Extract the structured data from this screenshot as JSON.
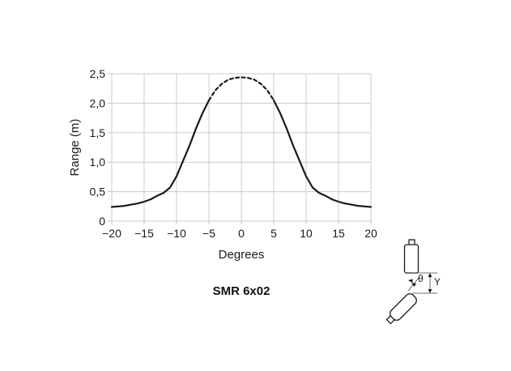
{
  "page": {
    "background": "#ffffff"
  },
  "chart_data": {
    "type": "line",
    "title": "SMR 6x02",
    "xlabel": "Degrees",
    "ylabel": "Range (m)",
    "xlim": [
      -20,
      20
    ],
    "ylim": [
      0,
      2.5
    ],
    "grid": true,
    "legend": false,
    "grid_color": "#cccccc",
    "line_color": "#1a1a1a",
    "x_ticks": [
      {
        "v": -20,
        "label": "−20"
      },
      {
        "v": -15,
        "label": "−15"
      },
      {
        "v": -10,
        "label": "−10"
      },
      {
        "v": -5,
        "label": "−5"
      },
      {
        "v": 0,
        "label": "0"
      },
      {
        "v": 5,
        "label": "5"
      },
      {
        "v": 10,
        "label": "10"
      },
      {
        "v": 15,
        "label": "15"
      },
      {
        "v": 20,
        "label": "20"
      }
    ],
    "y_ticks": [
      {
        "v": 0,
        "label": "0"
      },
      {
        "v": 0.5,
        "label": "0,5"
      },
      {
        "v": 1,
        "label": "1,0"
      },
      {
        "v": 1.5,
        "label": "1,5"
      },
      {
        "v": 2,
        "label": "2,0"
      },
      {
        "v": 2.5,
        "label": "2,5"
      }
    ],
    "series": [
      {
        "name": "detection-range-envelope",
        "color": "#1a1a1a",
        "dashed_between_degrees": [
          -5,
          5
        ],
        "points": [
          [
            -20,
            0.24
          ],
          [
            -19,
            0.25
          ],
          [
            -18,
            0.26
          ],
          [
            -17,
            0.28
          ],
          [
            -16,
            0.3
          ],
          [
            -15,
            0.33
          ],
          [
            -14,
            0.37
          ],
          [
            -13,
            0.43
          ],
          [
            -12,
            0.48
          ],
          [
            -11,
            0.57
          ],
          [
            -10,
            0.76
          ],
          [
            -9,
            1.02
          ],
          [
            -8,
            1.28
          ],
          [
            -7,
            1.57
          ],
          [
            -6,
            1.83
          ],
          [
            -5,
            2.05
          ],
          [
            -4,
            2.22
          ],
          [
            -3,
            2.33
          ],
          [
            -2,
            2.4
          ],
          [
            -1,
            2.43
          ],
          [
            0,
            2.44
          ],
          [
            1,
            2.43
          ],
          [
            2,
            2.4
          ],
          [
            3,
            2.33
          ],
          [
            4,
            2.22
          ],
          [
            5,
            2.05
          ],
          [
            6,
            1.83
          ],
          [
            7,
            1.57
          ],
          [
            8,
            1.28
          ],
          [
            9,
            1.02
          ],
          [
            10,
            0.76
          ],
          [
            11,
            0.57
          ],
          [
            12,
            0.48
          ],
          [
            13,
            0.43
          ],
          [
            14,
            0.37
          ],
          [
            15,
            0.33
          ],
          [
            16,
            0.3
          ],
          [
            17,
            0.28
          ],
          [
            18,
            0.26
          ],
          [
            19,
            0.25
          ],
          [
            20,
            0.24
          ]
        ]
      }
    ]
  },
  "diagram": {
    "theta_label": "θ",
    "y_label": "Y"
  }
}
